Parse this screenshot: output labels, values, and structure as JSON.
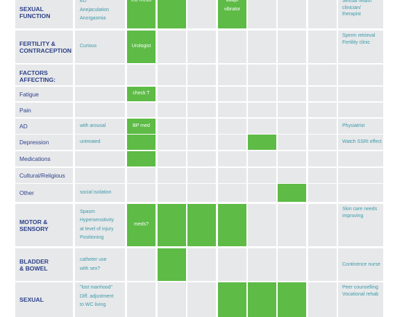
{
  "rows": [
    {
      "category": "SEXUAL\nFUNCTION",
      "note": "ED\nAnejaculation\nAnorgasmia",
      "green": [
        0,
        1,
        3
      ],
      "green_text": {
        "0": "ED meds",
        "3": "adapt\nvibrator"
      },
      "resource": "Sexual health\nclinician/\ntherapist"
    },
    {
      "category": "FERTILITY &\nCONTRACEPTION",
      "note": "Curious",
      "green": [
        0
      ],
      "green_text": {
        "0": "Urologist"
      },
      "resource": "Sperm retrieval\nFertility clinic"
    },
    {
      "category": "FACTORS\nAFFECTING:",
      "note": "",
      "green": [],
      "green_text": {},
      "resource": ""
    },
    {
      "factor": "Fatigue",
      "note": "",
      "green": [
        0
      ],
      "green_text": {
        "0": "check T"
      },
      "resource": ""
    },
    {
      "factor": "Pain",
      "note": "",
      "green": [],
      "green_text": {},
      "resource": ""
    },
    {
      "factor": "AD",
      "note": "with arousal",
      "green": [
        0
      ],
      "green_text": {
        "0": "BP med"
      },
      "resource": "Physiatrist"
    },
    {
      "factor": "Depression",
      "note": "untreated",
      "green": [
        0,
        4
      ],
      "green_text": {},
      "resource": "Watch SSRI effect"
    },
    {
      "factor": "Medications",
      "note": "",
      "green": [
        0
      ],
      "green_text": {},
      "resource": ""
    },
    {
      "factor": "Cultural/Religious",
      "note": "",
      "green": [],
      "green_text": {},
      "resource": ""
    },
    {
      "factor": "Other",
      "note": "social isolation",
      "green": [
        5
      ],
      "green_text": {},
      "resource": ""
    },
    {
      "category": "MOTOR &\nSENSORY",
      "note": "Spasm\nHypersensitivity\nat level of injury\nPositioning",
      "green": [
        0,
        1,
        2,
        3
      ],
      "green_text": {
        "0": "meds?"
      },
      "resource": "Skin care needs\nimproving"
    },
    {
      "category": "BLADDER\n& BOWEL",
      "note": "catheter use\nwith sex?",
      "green": [
        1
      ],
      "green_text": {},
      "resource": "Continence nurse"
    },
    {
      "category": "SEXUAL",
      "note": "\"lost manhood\"\nDiff. adjustment\nto WC living",
      "green": [
        3,
        4,
        5
      ],
      "green_text": {},
      "resource": "Peer counselling\nVocational rehab"
    }
  ],
  "colors": {
    "header_text": "#2a3f87",
    "note_text": "#3b9aa8",
    "green_fill": "#5dbb46",
    "gray_fill": "#e7e8ea"
  }
}
